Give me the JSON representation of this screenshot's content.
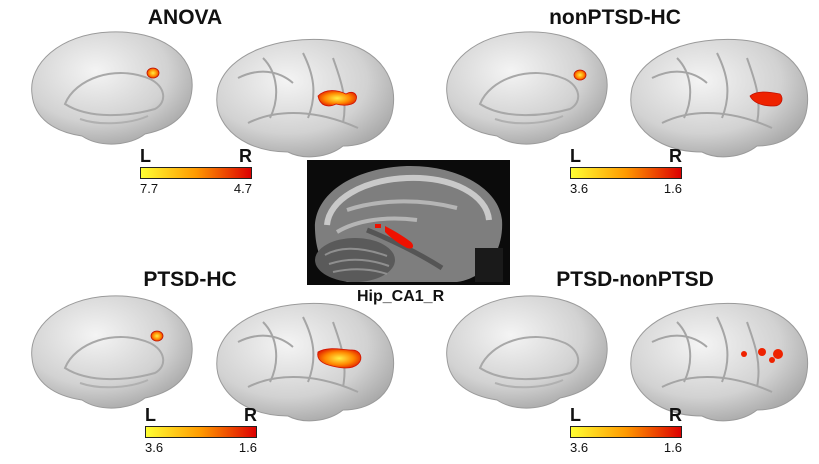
{
  "panels": [
    {
      "title": "ANOVA",
      "left_label": "L",
      "right_label": "R",
      "min_label": "7.7",
      "max_label": "4.7"
    },
    {
      "title": "nonPTSD-HC",
      "left_label": "L",
      "right_label": "R",
      "min_label": "3.6",
      "max_label": "1.6"
    },
    {
      "title": "PTSD-HC",
      "left_label": "L",
      "right_label": "R",
      "min_label": "3.6",
      "max_label": "1.6"
    },
    {
      "title": "PTSD-nonPTSD",
      "left_label": "L",
      "right_label": "R",
      "min_label": "3.6",
      "max_label": "1.6"
    }
  ],
  "center": {
    "label": "Hip_CA1_R"
  },
  "colors": {
    "bar_low": "#ffff33",
    "bar_high": "#dd0000",
    "cortex": "#d6d6d6",
    "activation": "#ee2200"
  }
}
